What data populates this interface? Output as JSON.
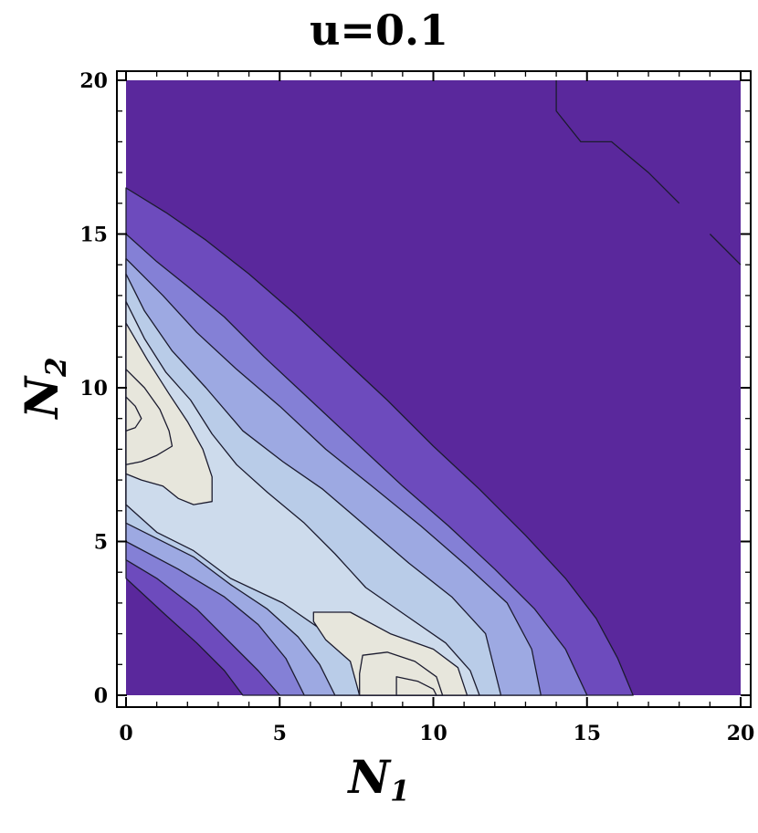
{
  "chart_data": {
    "type": "contour",
    "title": "u=0.1",
    "xlabel": {
      "main": "N",
      "sub": "1"
    },
    "ylabel": {
      "main": "N",
      "sub": "2"
    },
    "xlim": [
      0,
      20
    ],
    "ylim": [
      0,
      20
    ],
    "xticks": [
      0,
      5,
      10,
      15,
      20
    ],
    "yticks": [
      0,
      5,
      10,
      15,
      20
    ],
    "colors": {
      "level0": "#5a289c",
      "level1": "#6d4bbd",
      "level2": "#8480d6",
      "level3": "#9da9e2",
      "level4": "#c0d2ea",
      "level5": "#e7e6dc",
      "contour_line": "#1b1b2e"
    },
    "regions": [
      {
        "level": 1,
        "boundary": [
          [
            0,
            16.5
          ],
          [
            1.3,
            15.7
          ],
          [
            2.6,
            14.8
          ],
          [
            4,
            13.7
          ],
          [
            5.5,
            12.4
          ],
          [
            7,
            11
          ],
          [
            8.5,
            9.6
          ],
          [
            10,
            8.1
          ],
          [
            11.5,
            6.7
          ],
          [
            13,
            5.2
          ],
          [
            14.3,
            3.8
          ],
          [
            15.3,
            2.5
          ],
          [
            16,
            1.2
          ],
          [
            16.5,
            0
          ],
          [
            3.8,
            0
          ],
          [
            3.2,
            0.8
          ],
          [
            2.3,
            1.7
          ],
          [
            1.3,
            2.6
          ],
          [
            0,
            3.8
          ]
        ]
      },
      {
        "level": 2,
        "boundary": [
          [
            0,
            15
          ],
          [
            1,
            14.1
          ],
          [
            2,
            13.3
          ],
          [
            3.2,
            12.3
          ],
          [
            4.5,
            11
          ],
          [
            6,
            9.6
          ],
          [
            7.5,
            8.2
          ],
          [
            9,
            6.8
          ],
          [
            10.5,
            5.5
          ],
          [
            12,
            4.1
          ],
          [
            13.3,
            2.8
          ],
          [
            14.3,
            1.5
          ],
          [
            15,
            0
          ],
          [
            5,
            0
          ],
          [
            4.3,
            0.8
          ],
          [
            3.4,
            1.7
          ],
          [
            2.3,
            2.8
          ],
          [
            1,
            3.8
          ],
          [
            0,
            4.4
          ]
        ]
      },
      {
        "level": 3,
        "boundary": [
          [
            0,
            14.2
          ],
          [
            1.2,
            13
          ],
          [
            2.3,
            11.8
          ],
          [
            3.6,
            10.6
          ],
          [
            5,
            9.4
          ],
          [
            6.5,
            8
          ],
          [
            8,
            6.8
          ],
          [
            9.6,
            5.5
          ],
          [
            11.1,
            4.2
          ],
          [
            12.4,
            3
          ],
          [
            13.2,
            1.5
          ],
          [
            13.5,
            0
          ],
          [
            5.8,
            0
          ],
          [
            5.2,
            1.2
          ],
          [
            4.3,
            2.3
          ],
          [
            3.2,
            3.2
          ],
          [
            1.7,
            4.1
          ],
          [
            0,
            5
          ]
        ]
      },
      {
        "level": 4,
        "boundary": [
          [
            0,
            13.7
          ],
          [
            0.6,
            12.5
          ],
          [
            1.5,
            11.2
          ],
          [
            2.6,
            10
          ],
          [
            3.8,
            8.6
          ],
          [
            5.1,
            7.6
          ],
          [
            6.4,
            6.7
          ],
          [
            7.8,
            5.5
          ],
          [
            9.2,
            4.3
          ],
          [
            10.6,
            3.2
          ],
          [
            11.7,
            2
          ],
          [
            12.2,
            0
          ],
          [
            6.8,
            0
          ],
          [
            6.3,
            1
          ],
          [
            5.6,
            1.9
          ],
          [
            4.6,
            2.8
          ],
          [
            3.4,
            3.6
          ],
          [
            2.2,
            4.5
          ],
          [
            0,
            5.6
          ]
        ]
      },
      {
        "level": 5,
        "boundary": [
          [
            0,
            12.8
          ],
          [
            0.6,
            11.6
          ],
          [
            1.3,
            10.5
          ],
          [
            2.1,
            9.6
          ],
          [
            2.8,
            8.5
          ],
          [
            3.6,
            7.5
          ],
          [
            4.6,
            6.6
          ],
          [
            5.8,
            5.6
          ],
          [
            6.8,
            4.6
          ],
          [
            7.8,
            3.5
          ],
          [
            9.1,
            2.6
          ],
          [
            10.4,
            1.7
          ],
          [
            11.2,
            0.8
          ],
          [
            11.5,
            0
          ],
          [
            7.6,
            0
          ],
          [
            7.3,
            1.2
          ],
          [
            6.4,
            2.1
          ],
          [
            5.1,
            3
          ],
          [
            3.4,
            3.8
          ],
          [
            2.2,
            4.7
          ],
          [
            1,
            5.3
          ],
          [
            0,
            6.2
          ]
        ]
      },
      {
        "level": 6,
        "boundary": [
          [
            0,
            12.1
          ],
          [
            0.7,
            10.9
          ],
          [
            1.4,
            9.8
          ],
          [
            2,
            8.9
          ],
          [
            2.5,
            8
          ],
          [
            2.8,
            7.1
          ],
          [
            2.8,
            6.3
          ],
          [
            2.2,
            6.2
          ],
          [
            1.7,
            6.4
          ],
          [
            1.2,
            6.8
          ],
          [
            0.5,
            7
          ],
          [
            0,
            7.2
          ]
        ]
      },
      {
        "level": 6,
        "boundary": [
          [
            6.1,
            2.7
          ],
          [
            7.3,
            2.7
          ],
          [
            8.6,
            2
          ],
          [
            10,
            1.5
          ],
          [
            10.8,
            0.9
          ],
          [
            11.1,
            0
          ],
          [
            7.6,
            0
          ],
          [
            7.3,
            1.1
          ],
          [
            6.5,
            1.8
          ],
          [
            6.1,
            2.4
          ]
        ]
      },
      {
        "level": 7,
        "boundary": [
          [
            0,
            10.6
          ],
          [
            0.6,
            10
          ],
          [
            1.1,
            9.3
          ],
          [
            1.4,
            8.6
          ],
          [
            1.5,
            8.1
          ],
          [
            1,
            7.8
          ],
          [
            0.5,
            7.6
          ],
          [
            0,
            7.5
          ]
        ]
      },
      {
        "level": 7,
        "boundary": [
          [
            7.7,
            1.3
          ],
          [
            8.5,
            1.4
          ],
          [
            9.4,
            1.1
          ],
          [
            10.1,
            0.6
          ],
          [
            10.3,
            0
          ],
          [
            7.6,
            0
          ],
          [
            7.6,
            0.7
          ]
        ]
      },
      {
        "level": 8,
        "boundary": [
          [
            0,
            9.7
          ],
          [
            0.3,
            9.4
          ],
          [
            0.5,
            9
          ],
          [
            0.3,
            8.7
          ],
          [
            0,
            8.6
          ]
        ]
      },
      {
        "level": 8,
        "boundary": [
          [
            8.8,
            0.6
          ],
          [
            9.5,
            0.45
          ],
          [
            10,
            0.2
          ],
          [
            10.1,
            0
          ],
          [
            8.8,
            0
          ]
        ]
      }
    ],
    "extra_lines": [
      [
        [
          14,
          20
        ],
        [
          14,
          19
        ],
        [
          14.8,
          18
        ],
        [
          15.8,
          18
        ],
        [
          17,
          17
        ],
        [
          18,
          16
        ]
      ],
      [
        [
          19,
          15
        ],
        [
          20,
          14
        ]
      ]
    ]
  }
}
